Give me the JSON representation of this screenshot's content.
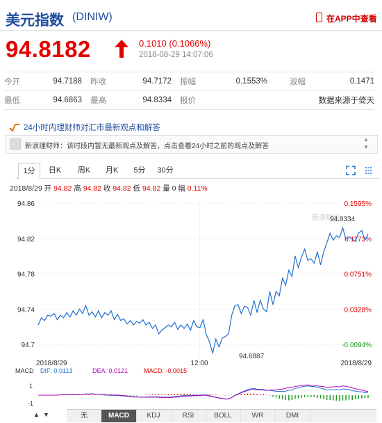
{
  "header": {
    "title": "美元指数",
    "code": "(DINIW)",
    "app_link": "在APP中查看"
  },
  "quote": {
    "price": "94.8182",
    "change": "0.1010 (0.1066%)",
    "time": "2018-08-29 14:07:06"
  },
  "stats": [
    [
      "今开",
      "94.7188",
      "昨收",
      "94.7172",
      "振幅",
      "0.1553%",
      "波幅",
      "0.1471"
    ],
    [
      "最低",
      "94.6863",
      "最高",
      "94.8334",
      "报价",
      "",
      "数据来源于倚天",
      ""
    ]
  ],
  "news": {
    "headline": "24小时内理财师对汇市最新观点和解答",
    "item": "新浪理财师：该时段内暂无最新观点及解答，点击查看24小时之前的观点及解答"
  },
  "tabs": [
    "1分",
    "日K",
    "周K",
    "月K",
    "5分",
    "30分"
  ],
  "info": {
    "date": "2018/8/29",
    "open_label": "开",
    "open": "94.82",
    "high_label": "高",
    "high": "94.82",
    "close_label": "收",
    "close": "94.82",
    "low_label": "低",
    "low": "94.82",
    "vol_label": "量",
    "vol": "0",
    "pct_label": "幅",
    "pct": "0.11%"
  },
  "chart_data": {
    "type": "line",
    "y_ticks": [
      "94.86",
      "94.82",
      "94.78",
      "94.74",
      "94.7"
    ],
    "y_pct_ticks": [
      "0.1595%",
      "0.1173%",
      "0.0751%",
      "0.0328%",
      "-0.0094%"
    ],
    "x_ticks": [
      "2018/8/29",
      "12:00",
      "2018/8/29"
    ],
    "ylim": [
      94.7,
      94.86
    ],
    "annot_high": "94.8334",
    "annot_low": "94.6887",
    "watermark": "新浪财经",
    "series": [
      {
        "values": [
          94.722,
          94.73,
          94.727,
          94.733,
          94.732,
          94.735,
          94.728,
          94.733,
          94.73,
          94.736,
          94.731,
          94.738,
          94.733,
          94.74,
          94.735,
          94.744,
          94.733,
          94.737,
          94.731,
          94.738,
          94.73,
          94.736,
          94.733,
          94.738,
          94.728,
          94.734,
          94.727,
          94.729,
          94.723,
          94.727,
          94.722,
          94.726,
          94.724,
          94.728,
          94.722,
          94.725,
          94.718,
          94.722,
          94.712,
          94.716,
          94.719,
          94.722,
          94.72,
          94.725,
          94.717,
          94.722,
          94.718,
          94.723,
          94.716,
          94.727,
          94.72,
          94.719,
          94.728,
          94.711,
          94.703,
          94.69,
          94.706,
          94.697,
          94.707,
          94.709,
          94.712,
          94.733,
          94.744,
          94.745,
          94.735,
          94.743,
          94.742,
          94.733,
          94.75,
          94.736,
          94.75,
          94.74,
          94.737,
          94.76,
          94.745,
          94.76,
          94.755,
          94.775,
          94.767,
          94.784,
          94.777,
          94.8,
          94.787,
          94.799,
          94.808,
          94.795,
          94.797,
          94.792,
          94.805,
          94.79,
          94.805,
          94.815,
          94.826,
          94.818,
          94.823,
          94.821,
          94.832,
          94.819,
          94.822,
          94.819,
          94.817,
          94.826,
          94.829,
          94.818,
          94.825
        ]
      }
    ]
  },
  "macd": {
    "label": "MACD",
    "dif": "DIF: 0.0113",
    "dea": "DEA: 0.0121",
    "macd": "MACD: -0.0015",
    "y_ticks": [
      "1",
      "-1"
    ]
  },
  "indicators": [
    "无",
    "MACD",
    "KDJ",
    "RSI",
    "BOLL",
    "WR",
    "DMI"
  ],
  "colors": {
    "up": "#e50000",
    "down": "#1a9c1a",
    "line": "#1f6fd1",
    "brand": "#1f4e9e"
  }
}
